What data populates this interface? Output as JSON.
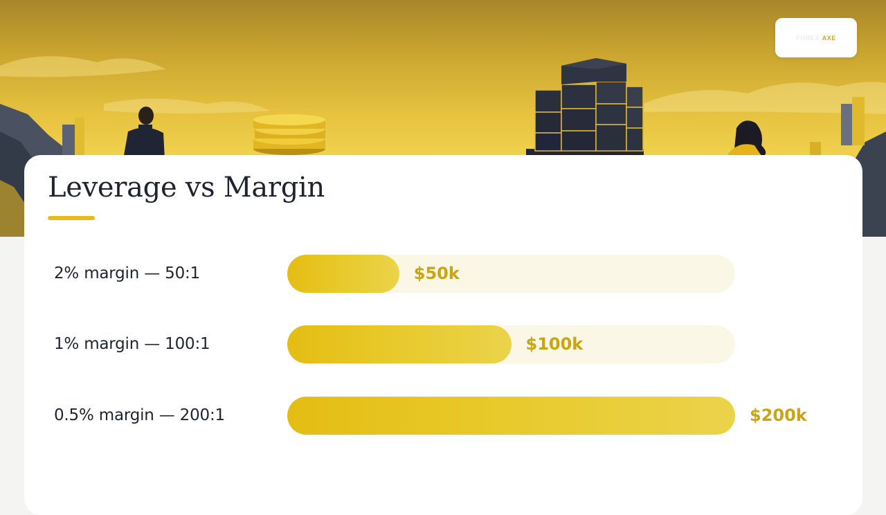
{
  "brand": {
    "logo_text_faded": "FOREX",
    "logo_text_accent": "AXE"
  },
  "colors": {
    "accent": "#e3bd19",
    "value_text": "#c9a413",
    "track": "#fbf7e7",
    "title_text": "#1e2330"
  },
  "chart_data": {
    "type": "bar",
    "orientation": "horizontal",
    "title": "Leverage vs Margin",
    "categories": [
      "2% margin — 50:1",
      "1% margin — 100:1",
      "0.5% margin — 200:1"
    ],
    "values": [
      50,
      100,
      200
    ],
    "value_labels": [
      "$50k",
      "$100k",
      "$200k"
    ],
    "xlim": [
      0,
      200
    ],
    "grid": false
  }
}
